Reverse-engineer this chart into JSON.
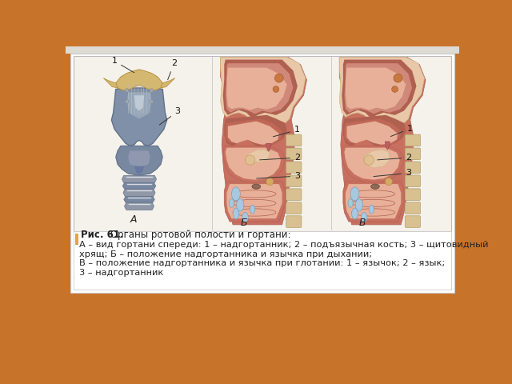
{
  "outer_bg_color": "#c8732a",
  "page_bg_color": "#f0eeea",
  "box_bg_color": "#ffffff",
  "box_border_color": "#c8c8c8",
  "diagram_bg": "#f5f2ec",
  "caption_marker_color": "#e8a040",
  "title_bold": "Рис. 61.",
  "title_text": " Органы ротовой полости и гортани:",
  "line1": "А – вид гортани спереди: 1 – надгортанник; 2 – подъязычная кость; 3 – щитовидный",
  "line2": "хрящ; Б – положение надгортанника и язычка при дыхании;",
  "line3": "В – положение надгортанника и язычка при глотании: 1 – язычок; 2 – язык;",
  "line4": "3 – надгортанник",
  "label_A": "А",
  "label_B": "Б",
  "label_V": "В",
  "text_color": "#222222",
  "font_size_caption": 8.5,
  "font_size_label": 9,
  "larynx_blue": "#8090a8",
  "larynx_blue_dark": "#607088",
  "larynx_blue_light": "#b0c0cc",
  "epi_color": "#d4b870",
  "epi_dark": "#b89040",
  "head_dark": "#b06050",
  "head_mid": "#c87060",
  "head_light": "#e8b098",
  "nasal_beige": "#e8c8a8",
  "nasal_beige2": "#d4b888",
  "spine_beige": "#d8c090",
  "blue_oval": "#a8c8e0",
  "trachea_ring": "#d0c8b0",
  "white_detail": "#f0ece4"
}
